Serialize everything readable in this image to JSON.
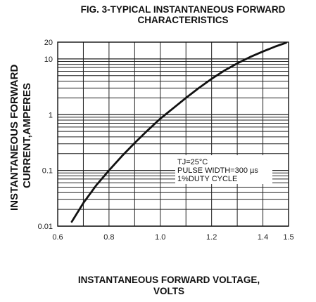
{
  "chart_data": {
    "type": "line",
    "title": [
      "FIG. 3-TYPICAL INSTANTANEOUS FORWARD",
      "CHARACTERISTICS"
    ],
    "xlabel": [
      "INSTANTANEOUS FORWARD VOLTAGE,",
      "VOLTS"
    ],
    "ylabel": [
      "INSTANTANEOUS FORWARD",
      "CURRENT,AMPERES"
    ],
    "x_scale": "linear",
    "y_scale": "log",
    "xlim": [
      0.6,
      1.5
    ],
    "ylim": [
      0.01,
      20
    ],
    "x_ticks": [
      {
        "value": 0.6,
        "label": "0.6"
      },
      {
        "value": 0.8,
        "label": "0.8"
      },
      {
        "value": 1.0,
        "label": "1.0"
      },
      {
        "value": 1.2,
        "label": "1.2"
      },
      {
        "value": 1.4,
        "label": "1.4"
      },
      {
        "value": 1.5,
        "label": "1.5"
      }
    ],
    "y_ticks": [
      {
        "value": 0.01,
        "label": "0.01"
      },
      {
        "value": 0.1,
        "label": "0.1"
      },
      {
        "value": 1,
        "label": "1"
      },
      {
        "value": 10,
        "label": "10"
      },
      {
        "value": 20,
        "label": "20"
      }
    ],
    "grid": true,
    "series": [
      {
        "x": [
          0.655,
          0.7,
          0.75,
          0.8,
          0.85,
          0.9,
          0.95,
          1.0,
          1.05,
          1.1,
          1.15,
          1.2,
          1.25,
          1.3,
          1.35,
          1.4,
          1.45,
          1.49
        ],
        "y": [
          0.012,
          0.026,
          0.054,
          0.1,
          0.18,
          0.31,
          0.52,
          0.85,
          1.3,
          2.0,
          3.0,
          4.4,
          6.2,
          8.3,
          10.8,
          13.6,
          16.8,
          19.5
        ]
      }
    ],
    "annotation": [
      "TJ=25°C",
      "PULSE WIDTH=300 µs",
      "1%DUTY CYCLE"
    ]
  }
}
